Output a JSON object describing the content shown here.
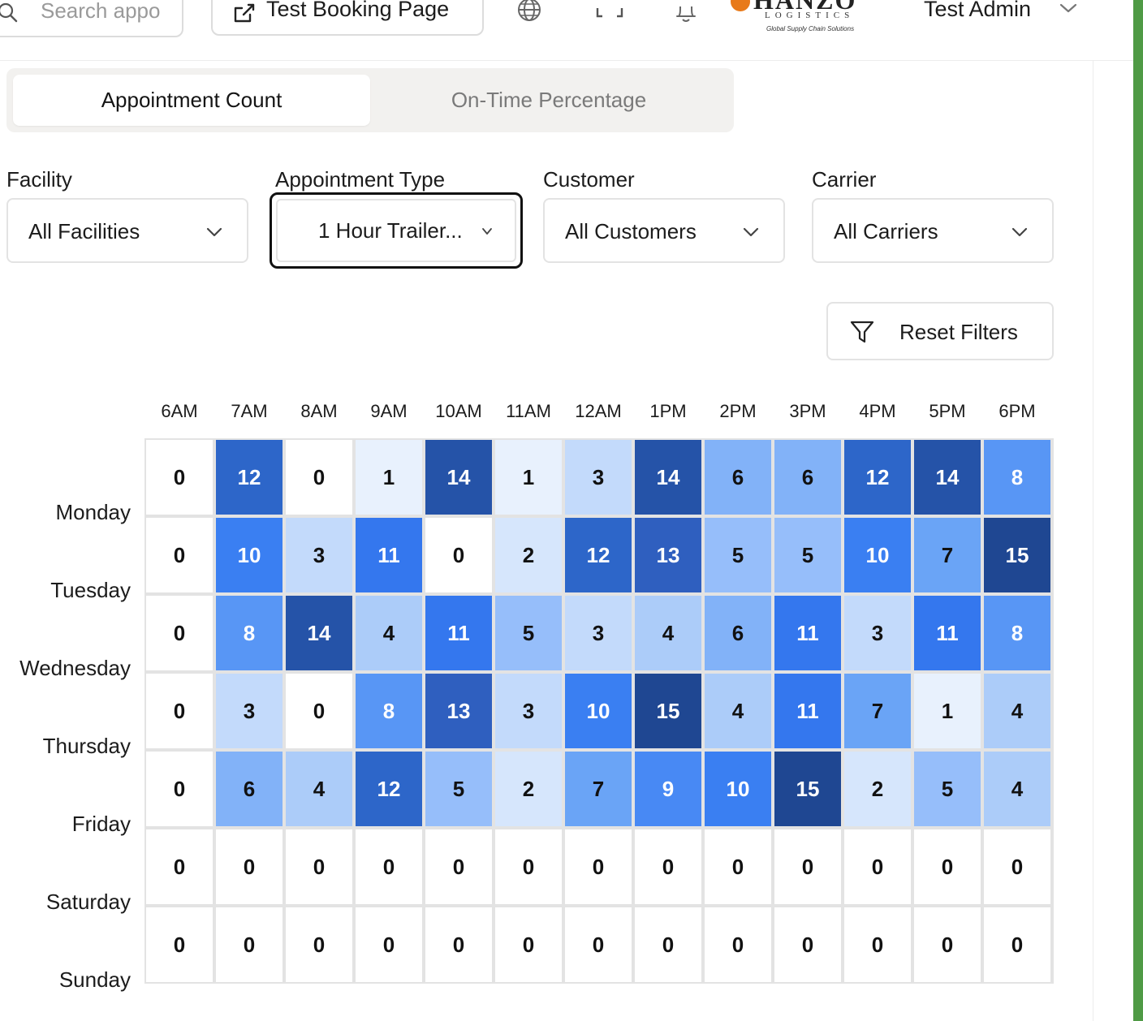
{
  "header": {
    "search_placeholder": "Search appo",
    "booking_button_label": "Test Booking Page",
    "logo_brand": "HANZO",
    "logo_sub1": "LOGISTICS",
    "logo_sub2": "Global Supply Chain Solutions",
    "user_name": "Test Admin",
    "icons": [
      "globe-icon",
      "fullscreen-icon",
      "bell-icon"
    ]
  },
  "tabs": {
    "active": "Appointment Count",
    "inactive": "On-Time Percentage"
  },
  "filters": {
    "facility": {
      "label": "Facility",
      "value": "All Facilities"
    },
    "appointment_type": {
      "label": "Appointment Type",
      "value": "1 Hour Trailer..."
    },
    "customer": {
      "label": "Customer",
      "value": "All Customers"
    },
    "carrier": {
      "label": "Carrier",
      "value": "All Carriers"
    }
  },
  "reset_button_label": "Reset Filters",
  "heatmap": {
    "hours": [
      "6AM",
      "7AM",
      "8AM",
      "9AM",
      "10AM",
      "11AM",
      "12AM",
      "1PM",
      "2PM",
      "3PM",
      "4PM",
      "5PM",
      "6PM"
    ],
    "days": [
      "Monday",
      "Tuesday",
      "Wednesday",
      "Thursday",
      "Friday",
      "Saturday",
      "Sunday"
    ],
    "values": [
      [
        0,
        12,
        0,
        1,
        14,
        1,
        3,
        14,
        6,
        6,
        12,
        14,
        8
      ],
      [
        0,
        10,
        3,
        11,
        0,
        2,
        12,
        13,
        5,
        5,
        10,
        7,
        15
      ],
      [
        0,
        8,
        14,
        4,
        11,
        5,
        3,
        4,
        6,
        11,
        3,
        11,
        8
      ],
      [
        0,
        3,
        0,
        8,
        13,
        3,
        10,
        15,
        4,
        11,
        7,
        1,
        4
      ],
      [
        0,
        6,
        4,
        12,
        5,
        2,
        7,
        9,
        10,
        15,
        2,
        5,
        4
      ],
      [
        0,
        0,
        0,
        0,
        0,
        0,
        0,
        0,
        0,
        0,
        0,
        0,
        0
      ],
      [
        0,
        0,
        0,
        0,
        0,
        0,
        0,
        0,
        0,
        0,
        0,
        0,
        0
      ]
    ],
    "color_scale": [
      "#ffffff",
      "#e8f1fd",
      "#d6e6fc",
      "#c3dafb",
      "#acccf9",
      "#96befa",
      "#82b2f8",
      "#6aa4f6",
      "#5896f5",
      "#4889f4",
      "#3a7ff2",
      "#3477ee",
      "#2d66c9",
      "#2f5fbf",
      "#2553a8",
      "#1f4792"
    ]
  }
}
